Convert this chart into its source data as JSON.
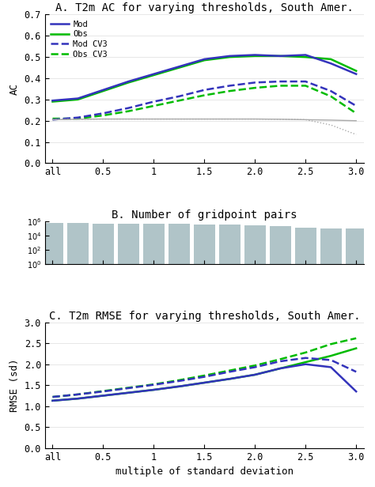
{
  "title_a": "A. T2m AC for varying thresholds, South Amer.",
  "title_b": "B. Number of gridpoint pairs",
  "title_c": "C. T2m RMSE for varying thresholds, South Amer.",
  "xlabel": "multiple of standard deviation",
  "ylabel_a": "AC",
  "ylabel_c": "RMSE (sd)",
  "x_labels": [
    "all",
    "0.5",
    "1",
    "1.5",
    "2.0",
    "2.5",
    "3.0"
  ],
  "x_ticks_idx": [
    0,
    2,
    4,
    6,
    8,
    10,
    12
  ],
  "x_numeric": [
    0,
    1,
    2,
    3,
    4,
    5,
    6,
    7,
    8,
    9,
    10,
    11,
    12
  ],
  "ac_mod": [
    0.295,
    0.305,
    0.345,
    0.385,
    0.42,
    0.455,
    0.49,
    0.505,
    0.51,
    0.505,
    0.51,
    0.47,
    0.42
  ],
  "ac_obs": [
    0.29,
    0.3,
    0.34,
    0.38,
    0.415,
    0.45,
    0.485,
    0.5,
    0.505,
    0.505,
    0.5,
    0.49,
    0.435
  ],
  "ac_mod_cv3": [
    0.205,
    0.215,
    0.235,
    0.26,
    0.29,
    0.315,
    0.345,
    0.365,
    0.38,
    0.385,
    0.385,
    0.34,
    0.27
  ],
  "ac_obs_cv3": [
    0.21,
    0.21,
    0.225,
    0.245,
    0.27,
    0.295,
    0.32,
    0.34,
    0.355,
    0.365,
    0.365,
    0.315,
    0.235
  ],
  "ac_gray1": [
    0.205,
    0.207,
    0.208,
    0.208,
    0.208,
    0.208,
    0.208,
    0.208,
    0.208,
    0.207,
    0.205,
    0.203,
    0.2
  ],
  "ac_gray2": [
    0.205,
    0.207,
    0.208,
    0.208,
    0.208,
    0.208,
    0.208,
    0.208,
    0.208,
    0.207,
    0.205,
    0.18,
    0.135
  ],
  "bar_values": [
    580000.0,
    560000.0,
    520000.0,
    500000.0,
    460000.0,
    440000.0,
    400000.0,
    350000.0,
    280000.0,
    200000.0,
    140000.0,
    100000.0,
    90000.0
  ],
  "bar_color": "#b0c4c8",
  "rmse_mod": [
    1.13,
    1.18,
    1.25,
    1.32,
    1.39,
    1.47,
    1.56,
    1.65,
    1.75,
    1.9,
    2.0,
    1.93,
    1.35
  ],
  "rmse_obs": [
    1.13,
    1.18,
    1.25,
    1.32,
    1.39,
    1.47,
    1.56,
    1.65,
    1.75,
    1.9,
    2.05,
    2.2,
    2.38
  ],
  "rmse_mod_cv3": [
    1.22,
    1.28,
    1.35,
    1.43,
    1.51,
    1.6,
    1.7,
    1.82,
    1.93,
    2.07,
    2.15,
    2.1,
    1.82
  ],
  "rmse_obs_cv3": [
    1.22,
    1.28,
    1.36,
    1.44,
    1.52,
    1.62,
    1.73,
    1.85,
    1.97,
    2.12,
    2.28,
    2.48,
    2.62
  ],
  "color_mod": "#3333bb",
  "color_obs": "#00bb00",
  "color_gray": "#aaaaaa",
  "lw_main": 1.8,
  "lw_thin": 1.0,
  "title_fontsize": 10,
  "label_fontsize": 9,
  "tick_fontsize": 8.5
}
